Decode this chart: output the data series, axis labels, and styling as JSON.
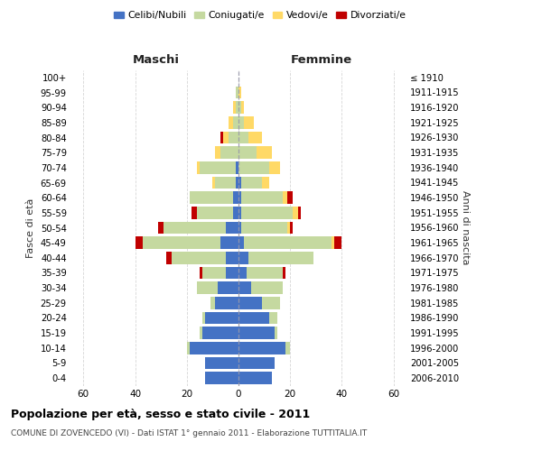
{
  "age_groups": [
    "0-4",
    "5-9",
    "10-14",
    "15-19",
    "20-24",
    "25-29",
    "30-34",
    "35-39",
    "40-44",
    "45-49",
    "50-54",
    "55-59",
    "60-64",
    "65-69",
    "70-74",
    "75-79",
    "80-84",
    "85-89",
    "90-94",
    "95-99",
    "100+"
  ],
  "birth_years": [
    "2006-2010",
    "2001-2005",
    "1996-2000",
    "1991-1995",
    "1986-1990",
    "1981-1985",
    "1976-1980",
    "1971-1975",
    "1966-1970",
    "1961-1965",
    "1956-1960",
    "1951-1955",
    "1946-1950",
    "1941-1945",
    "1936-1940",
    "1931-1935",
    "1926-1930",
    "1921-1925",
    "1916-1920",
    "1911-1915",
    "≤ 1910"
  ],
  "colors": {
    "celibi": "#4472C4",
    "coniugati": "#C5D9A0",
    "vedovi": "#FFD966",
    "divorziati": "#C00000"
  },
  "males": {
    "celibi": [
      13,
      13,
      19,
      14,
      13,
      9,
      8,
      5,
      5,
      7,
      5,
      2,
      2,
      1,
      1,
      0,
      0,
      0,
      0,
      0,
      0
    ],
    "coniugati": [
      0,
      0,
      1,
      1,
      1,
      2,
      8,
      9,
      21,
      30,
      24,
      14,
      17,
      8,
      14,
      7,
      4,
      2,
      1,
      1,
      0
    ],
    "vedovi": [
      0,
      0,
      0,
      0,
      0,
      0,
      0,
      0,
      0,
      0,
      0,
      0,
      0,
      1,
      1,
      2,
      2,
      2,
      1,
      0,
      0
    ],
    "divorziati": [
      0,
      0,
      0,
      0,
      0,
      0,
      0,
      1,
      2,
      3,
      2,
      2,
      0,
      0,
      0,
      0,
      1,
      0,
      0,
      0,
      0
    ]
  },
  "females": {
    "nubili": [
      13,
      14,
      18,
      14,
      12,
      9,
      5,
      3,
      4,
      2,
      1,
      1,
      1,
      1,
      0,
      0,
      0,
      0,
      0,
      0,
      0
    ],
    "coniugate": [
      0,
      0,
      2,
      1,
      3,
      7,
      12,
      14,
      25,
      34,
      18,
      20,
      16,
      8,
      12,
      7,
      4,
      2,
      1,
      0,
      0
    ],
    "vedove": [
      0,
      0,
      0,
      0,
      0,
      0,
      0,
      0,
      0,
      1,
      1,
      2,
      2,
      3,
      4,
      6,
      5,
      4,
      1,
      1,
      0
    ],
    "divorziate": [
      0,
      0,
      0,
      0,
      0,
      0,
      0,
      1,
      0,
      3,
      1,
      1,
      2,
      0,
      0,
      0,
      0,
      0,
      0,
      0,
      0
    ]
  },
  "xlim": 65,
  "title": "Popolazione per età, sesso e stato civile - 2011",
  "subtitle": "COMUNE DI ZOVENCEDO (VI) - Dati ISTAT 1° gennaio 2011 - Elaborazione TUTTITALIA.IT",
  "maschi_label": "Maschi",
  "femmine_label": "Femmine",
  "fasce_label": "Fasce di età",
  "anni_label": "Anni di nascita",
  "legend_labels": [
    "Celibi/Nubili",
    "Coniugati/e",
    "Vedovi/e",
    "Divorziati/e"
  ],
  "bg_color": "#FFFFFF",
  "grid_color": "#CCCCCC",
  "bar_height": 0.82
}
